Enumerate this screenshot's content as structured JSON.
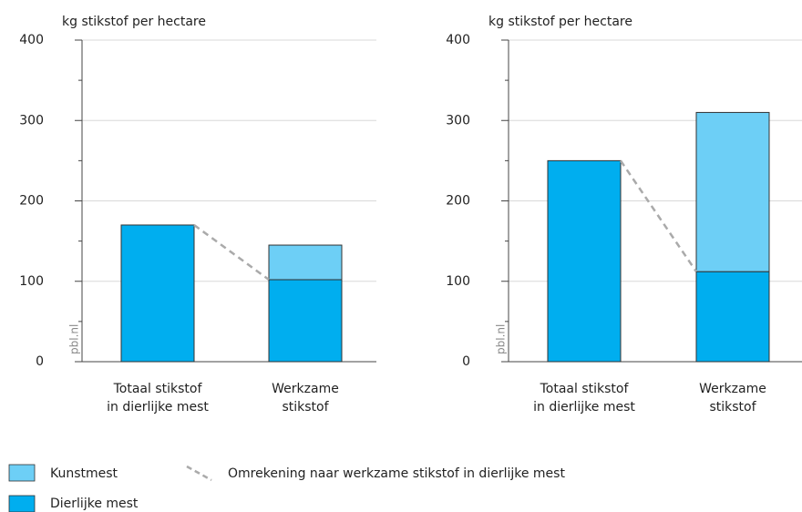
{
  "chart_data": [
    {
      "type": "bar",
      "stacked": true,
      "title": "kg stikstof per hectare",
      "source": "pbl.nl",
      "categories": [
        [
          "Totaal stikstof",
          "in dierlijke mest"
        ],
        [
          "Werkzame",
          "stikstof"
        ]
      ],
      "series": [
        {
          "name": "Dierlijke mest",
          "color": "#00aeef",
          "values": [
            170,
            102
          ]
        },
        {
          "name": "Kunstmest",
          "color": "#6dcff6",
          "values": [
            0,
            43
          ]
        }
      ],
      "conversion_label": "Omrekening naar werkzame stikstof in dierlijke mest",
      "ylim": [
        0,
        400
      ],
      "yticks": [
        0,
        100,
        200,
        300,
        400
      ],
      "minor_yticks": [
        50,
        150,
        250,
        350
      ],
      "grid": true
    },
    {
      "type": "bar",
      "stacked": true,
      "title": "kg stikstof per hectare",
      "source": "pbl.nl",
      "categories": [
        [
          "Totaal stikstof",
          "in dierlijke mest"
        ],
        [
          "Werkzame",
          "stikstof"
        ]
      ],
      "series": [
        {
          "name": "Dierlijke mest",
          "color": "#00aeef",
          "values": [
            250,
            112
          ]
        },
        {
          "name": "Kunstmest",
          "color": "#6dcff6",
          "values": [
            0,
            198
          ]
        }
      ],
      "ylim": [
        0,
        400
      ],
      "yticks": [
        0,
        100,
        200,
        300,
        400
      ],
      "minor_yticks": [
        50,
        150,
        250,
        350
      ],
      "grid": true
    }
  ]
}
